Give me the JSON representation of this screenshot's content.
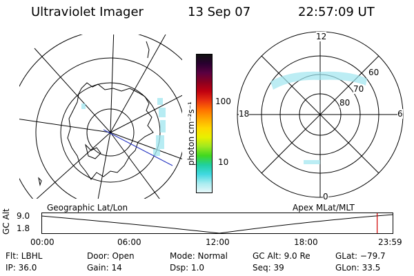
{
  "header": {
    "title": "Ultraviolet Imager",
    "date": "13 Sep 07",
    "time": "22:57:09 UT"
  },
  "colorbar": {
    "unit_label": "photon cm⁻²s⁻¹",
    "ticks": [
      "100",
      "10"
    ],
    "colors": [
      "#101010",
      "#2a0030",
      "#5a0040",
      "#8a0020",
      "#c00010",
      "#e83010",
      "#ff7000",
      "#ffa800",
      "#ffd800",
      "#e8f000",
      "#a0e820",
      "#40d820",
      "#20d0a0",
      "#40d8e0",
      "#a8ecf0",
      "#e8f8fa"
    ]
  },
  "polar_plot": {
    "hour_labels": {
      "top": "12",
      "left": "18",
      "right": "6",
      "bottom": "0"
    },
    "lat_labels": [
      "60",
      "70",
      "80"
    ]
  },
  "labels": {
    "geo": "Geographic Lat/Lon",
    "apex": "Apex  MLat/MLT"
  },
  "alt_plot": {
    "axis_title": "GC Alt",
    "y_ticks": [
      "9.0",
      "1.8"
    ],
    "x_ticks": [
      "00:00",
      "06:00",
      "12:00",
      "18:00",
      "23:59"
    ],
    "current_time_fraction": 0.956
  },
  "info": {
    "flt": "Flt:  LBHL",
    "ip": "IP:  36.0",
    "door": "Door:  Open",
    "gain": "Gain:  14",
    "mode": "Mode:  Normal",
    "dsp": "Dsp:       1.0",
    "gcalt": "GC Alt:  9.0 Re",
    "seq": "Seq:  39",
    "glat": "GLat:  −79.7",
    "glon": "GLon:    33.5"
  }
}
